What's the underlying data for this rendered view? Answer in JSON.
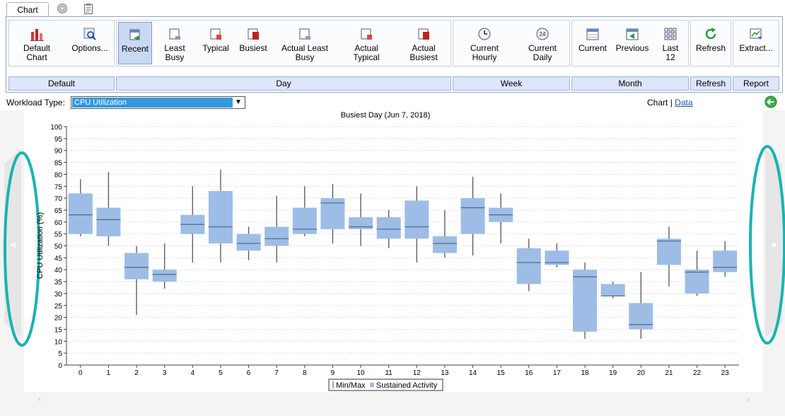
{
  "tabs": {
    "active_label": "Chart"
  },
  "ribbon": {
    "buttons": {
      "default_chart": "Default\nChart",
      "options": "Options...",
      "recent": "Recent",
      "least_busy": "Least\nBusy",
      "typical": "Typical",
      "busiest": "Busiest",
      "actual_least_busy": "Actual Least\nBusy",
      "actual_typical": "Actual\nTypical",
      "actual_busiest": "Actual\nBusiest",
      "current_hourly": "Current\nHourly",
      "current_daily": "Current\nDaily",
      "current": "Current",
      "previous": "Previous",
      "last_12": "Last\n12",
      "refresh": "Refresh",
      "extract": "Extract..."
    },
    "groups": {
      "default": "Default",
      "day": "Day",
      "week": "Week",
      "month": "Month",
      "refresh": "Refresh",
      "report": "Report"
    },
    "selected": "recent"
  },
  "workload": {
    "label": "Workload Type:",
    "selected_value": "CPU Utilization"
  },
  "view": {
    "chart": "Chart",
    "separator": "|",
    "data": "Data"
  },
  "colors": {
    "box_fill": "#9dbde6",
    "whisker": "#555555",
    "median": "#5a6f88",
    "accent_circle": "#19b3b3",
    "select_highlight": "#3399dd"
  },
  "icons": {
    "nav_prev": "chevron-left-icon",
    "nav_next": "chevron-right-icon",
    "back": "green-back-arrow-icon"
  },
  "chart_data": {
    "type": "box",
    "title": "Busiest Day (Jun 7, 2018)",
    "ylabel": "CPU Utilization (%)",
    "xlabel": "",
    "ylim": [
      0,
      100
    ],
    "ytick_step": 5,
    "grid": true,
    "categories": [
      "0",
      "1",
      "2",
      "3",
      "4",
      "5",
      "6",
      "7",
      "8",
      "9",
      "10",
      "11",
      "12",
      "13",
      "14",
      "15",
      "16",
      "17",
      "18",
      "19",
      "20",
      "21",
      "22",
      "23"
    ],
    "legend": [
      "Min/Max",
      "Sustained Activity"
    ],
    "legend_position": "bottom",
    "min": [
      54,
      50,
      21,
      32,
      43,
      43,
      44,
      43,
      54,
      51,
      50,
      49,
      43,
      45,
      46,
      51,
      31,
      41,
      11,
      28,
      11,
      33,
      29,
      37
    ],
    "max": [
      78,
      81,
      50,
      51,
      75,
      82,
      58,
      71,
      75,
      76,
      72,
      65,
      75,
      65,
      79,
      72,
      53,
      51,
      43,
      35,
      39,
      58,
      48,
      52
    ],
    "q1": [
      55,
      54,
      36,
      35,
      55,
      51,
      48,
      50,
      55,
      57,
      57,
      53,
      53,
      47,
      55,
      60,
      34,
      42,
      14,
      29,
      15,
      42,
      30,
      39
    ],
    "q3": [
      72,
      66,
      47,
      40,
      63,
      73,
      55,
      58,
      66,
      70,
      62,
      62,
      69,
      54,
      70,
      66,
      49,
      48,
      40,
      34,
      26,
      53,
      40,
      48
    ],
    "median": [
      63,
      61,
      41,
      38,
      59,
      58,
      51,
      53,
      57,
      68,
      58,
      57,
      58,
      51,
      66,
      63,
      43,
      43,
      37,
      29,
      17,
      52,
      39,
      41
    ]
  }
}
